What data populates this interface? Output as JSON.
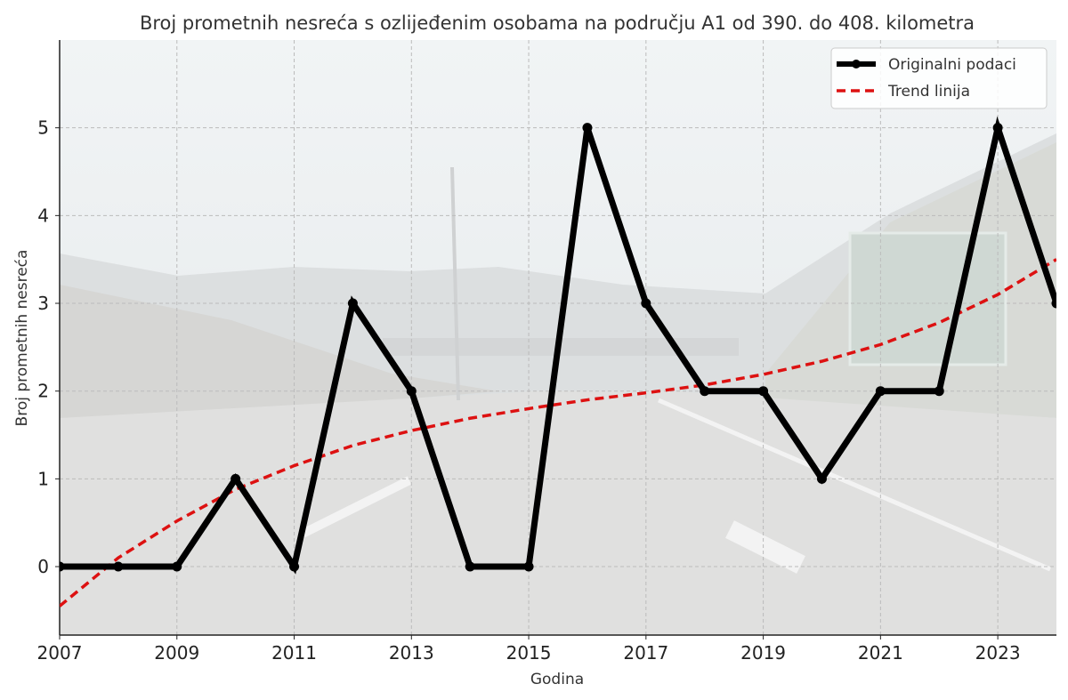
{
  "chart_data": {
    "type": "line",
    "title": "Broj prometnih nesreća s ozlijeđenim osobama na području A1 od 390. do 408. kilometra",
    "xlabel": "Godina",
    "ylabel": "Broj prometnih nesreća",
    "xlim": [
      2007,
      2024
    ],
    "ylim": [
      -0.78,
      6.0
    ],
    "xticks": [
      "2007",
      "2009",
      "2011",
      "2013",
      "2015",
      "2017",
      "2019",
      "2021",
      "2023"
    ],
    "yticks": [
      "0",
      "1",
      "2",
      "3",
      "4",
      "5"
    ],
    "grid": true,
    "legend_position": "top-right",
    "x": [
      2007,
      2008,
      2009,
      2010,
      2011,
      2012,
      2013,
      2014,
      2015,
      2016,
      2017,
      2018,
      2019,
      2020,
      2021,
      2022,
      2023,
      2024
    ],
    "series": [
      {
        "name": "Originalni podaci",
        "color": "#000000",
        "style": "solid-markers",
        "values": [
          0,
          0,
          0,
          1,
          0,
          3,
          2,
          0,
          0,
          5,
          3,
          2,
          2,
          1,
          2,
          2,
          5,
          3
        ]
      },
      {
        "name": "Trend linija",
        "color": "#dd1111",
        "style": "dashed",
        "values": [
          -0.45,
          0.1,
          0.52,
          0.88,
          1.15,
          1.38,
          1.55,
          1.69,
          1.8,
          1.9,
          1.98,
          2.07,
          2.19,
          2.34,
          2.53,
          2.78,
          3.1,
          3.5
        ]
      }
    ]
  }
}
